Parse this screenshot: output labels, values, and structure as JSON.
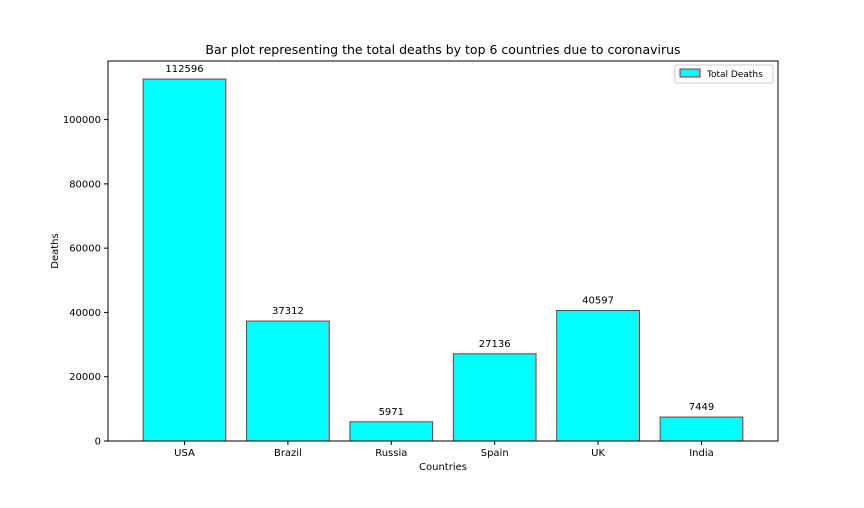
{
  "chart_data": {
    "type": "bar",
    "title": "Bar plot representing the total deaths by top 6 countries due to coronavirus",
    "xlabel": "Countries",
    "ylabel": "Deaths",
    "categories": [
      "USA",
      "Brazil",
      "Russia",
      "Spain",
      "UK",
      "India"
    ],
    "series": [
      {
        "name": "Total Deaths",
        "values": [
          112596,
          37312,
          5971,
          27136,
          40597,
          7449
        ]
      }
    ],
    "data_labels": [
      "112596",
      "37312",
      "5971",
      "27136",
      "40597",
      "7449"
    ],
    "ylim": [
      0,
      118226
    ],
    "yticks": [
      0,
      20000,
      40000,
      60000,
      80000,
      100000
    ],
    "ytick_labels": [
      "0",
      "20000",
      "40000",
      "60000",
      "80000",
      "100000"
    ],
    "grid": false,
    "legend_position": "top-right",
    "bar_fill_color": "#00ffff",
    "bar_edge_color": "#b22222"
  }
}
